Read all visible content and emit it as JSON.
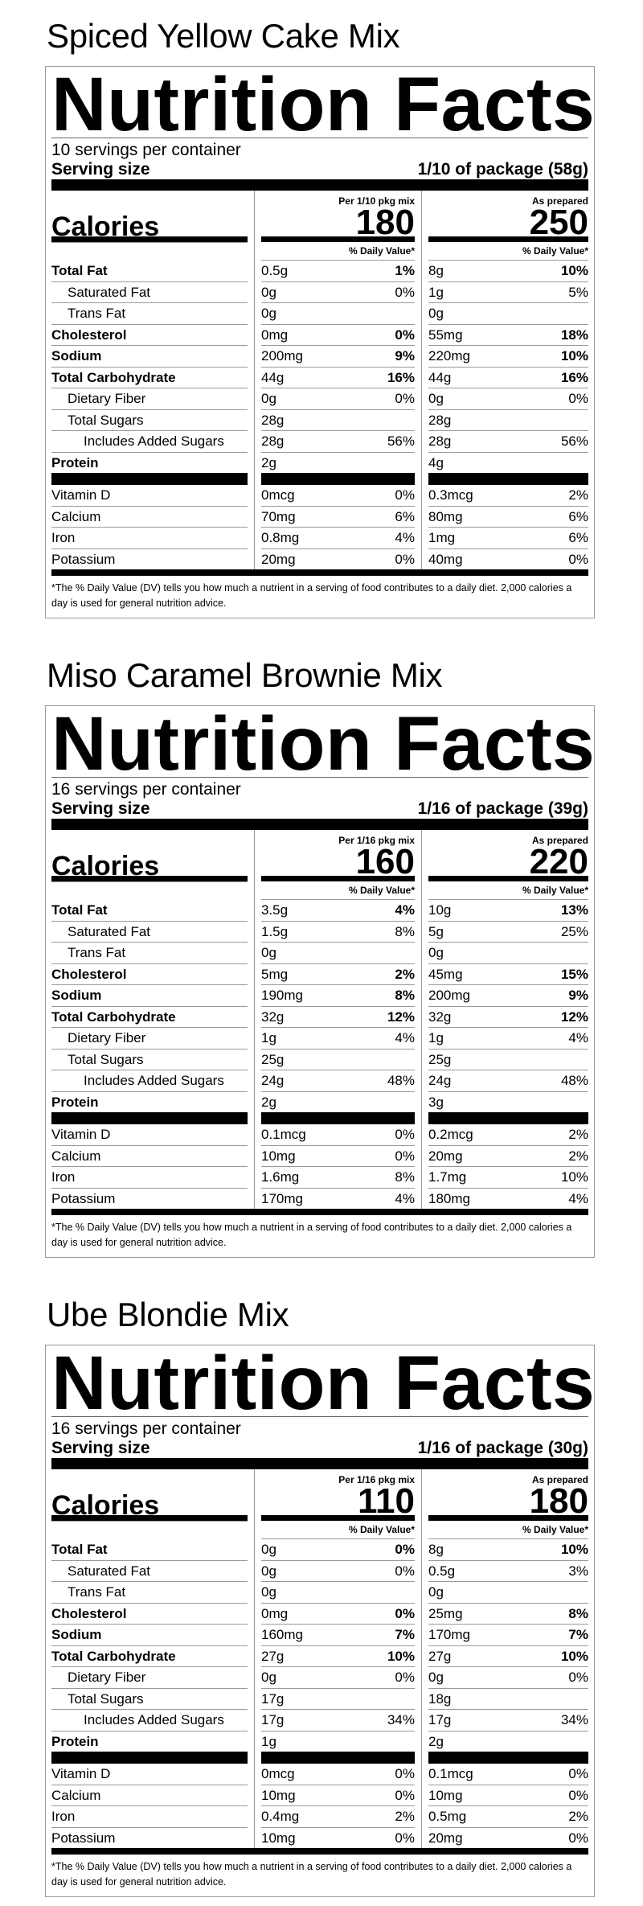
{
  "products": [
    {
      "title": "Spiced Yellow Cake Mix",
      "label": {
        "heading": "Nutrition Facts",
        "servings": "10 servings per container",
        "serving_size_label": "Serving size",
        "serving_size": "1/10 of package (58g)",
        "col1_header": "Per 1/10 pkg mix",
        "col2_header": "As prepared",
        "calories_label": "Calories",
        "calories": [
          180,
          250
        ],
        "dv_header": "% Daily Value*",
        "nutrients": [
          {
            "name": "Total Fat",
            "col1": {
              "amount": "0.5g",
              "dv": "1%"
            },
            "col2": {
              "amount": "8g",
              "dv": "10%"
            },
            "subs": [
              {
                "name": "Saturated Fat",
                "col1": {
                  "amount": "0g",
                  "dv": "0%"
                },
                "col2": {
                  "amount": "1g",
                  "dv": "5%"
                }
              },
              {
                "name": "Trans Fat",
                "col1": {
                  "amount": "0g"
                },
                "col2": {
                  "amount": "0g"
                }
              }
            ]
          },
          {
            "name": "Cholesterol",
            "col1": {
              "amount": "0mg",
              "dv": "0%"
            },
            "col2": {
              "amount": "55mg",
              "dv": "18%"
            }
          },
          {
            "name": "Sodium",
            "col1": {
              "amount": "200mg",
              "dv": "9%"
            },
            "col2": {
              "amount": "220mg",
              "dv": "10%"
            }
          },
          {
            "name": "Total Carbohydrate",
            "col1": {
              "amount": "44g",
              "dv": "16%"
            },
            "col2": {
              "amount": "44g",
              "dv": "16%"
            },
            "subs": [
              {
                "name": "Dietary Fiber",
                "col1": {
                  "amount": "0g",
                  "dv": "0%"
                },
                "col2": {
                  "amount": "0g",
                  "dv": "0%"
                }
              },
              {
                "name": "Total Sugars",
                "col1": {
                  "amount": "28g"
                },
                "col2": {
                  "amount": "28g"
                },
                "subs": [
                  {
                    "name": "Includes Added Sugars",
                    "col1": {
                      "amount": "28g",
                      "dv": "56%"
                    },
                    "col2": {
                      "amount": "28g",
                      "dv": "56%"
                    }
                  }
                ]
              }
            ]
          },
          {
            "name": "Protein",
            "col1": {
              "amount": "2g"
            },
            "col2": {
              "amount": "4g"
            }
          }
        ],
        "vitamins": [
          {
            "name": "Vitamin D",
            "col1": {
              "amount": "0mcg",
              "dv": "0%"
            },
            "col2": {
              "amount": "0.3mcg",
              "dv": "2%"
            }
          },
          {
            "name": "Calcium",
            "col1": {
              "amount": "70mg",
              "dv": "6%"
            },
            "col2": {
              "amount": "80mg",
              "dv": "6%"
            }
          },
          {
            "name": "Iron",
            "col1": {
              "amount": "0.8mg",
              "dv": "4%"
            },
            "col2": {
              "amount": "1mg",
              "dv": "6%"
            }
          },
          {
            "name": "Potassium",
            "col1": {
              "amount": "20mg",
              "dv": "0%"
            },
            "col2": {
              "amount": "40mg",
              "dv": "0%"
            }
          }
        ],
        "footnote": "*The % Daily Value (DV) tells you how much a nutrient in a serving of food contributes to a daily diet. 2,000 calories a day is used for general nutrition advice."
      }
    },
    {
      "title": "Miso Caramel Brownie Mix",
      "label": {
        "heading": "Nutrition Facts",
        "servings": "16 servings per container",
        "serving_size_label": "Serving size",
        "serving_size": "1/16 of package (39g)",
        "col1_header": "Per 1/16 pkg mix",
        "col2_header": "As prepared",
        "calories_label": "Calories",
        "calories": [
          160,
          220
        ],
        "dv_header": "% Daily Value*",
        "nutrients": [
          {
            "name": "Total Fat",
            "col1": {
              "amount": "3.5g",
              "dv": "4%"
            },
            "col2": {
              "amount": "10g",
              "dv": "13%"
            },
            "subs": [
              {
                "name": "Saturated Fat",
                "col1": {
                  "amount": "1.5g",
                  "dv": "8%"
                },
                "col2": {
                  "amount": "5g",
                  "dv": "25%"
                }
              },
              {
                "name": "Trans Fat",
                "col1": {
                  "amount": "0g"
                },
                "col2": {
                  "amount": "0g"
                }
              }
            ]
          },
          {
            "name": "Cholesterol",
            "col1": {
              "amount": "5mg",
              "dv": "2%"
            },
            "col2": {
              "amount": "45mg",
              "dv": "15%"
            }
          },
          {
            "name": "Sodium",
            "col1": {
              "amount": "190mg",
              "dv": "8%"
            },
            "col2": {
              "amount": "200mg",
              "dv": "9%"
            }
          },
          {
            "name": "Total Carbohydrate",
            "col1": {
              "amount": "32g",
              "dv": "12%"
            },
            "col2": {
              "amount": "32g",
              "dv": "12%"
            },
            "subs": [
              {
                "name": "Dietary Fiber",
                "col1": {
                  "amount": "1g",
                  "dv": "4%"
                },
                "col2": {
                  "amount": "1g",
                  "dv": "4%"
                }
              },
              {
                "name": "Total Sugars",
                "col1": {
                  "amount": "25g"
                },
                "col2": {
                  "amount": "25g"
                },
                "subs": [
                  {
                    "name": "Includes Added Sugars",
                    "col1": {
                      "amount": "24g",
                      "dv": "48%"
                    },
                    "col2": {
                      "amount": "24g",
                      "dv": "48%"
                    }
                  }
                ]
              }
            ]
          },
          {
            "name": "Protein",
            "col1": {
              "amount": "2g"
            },
            "col2": {
              "amount": "3g"
            }
          }
        ],
        "vitamins": [
          {
            "name": "Vitamin D",
            "col1": {
              "amount": "0.1mcg",
              "dv": "0%"
            },
            "col2": {
              "amount": "0.2mcg",
              "dv": "2%"
            }
          },
          {
            "name": "Calcium",
            "col1": {
              "amount": "10mg",
              "dv": "0%"
            },
            "col2": {
              "amount": "20mg",
              "dv": "2%"
            }
          },
          {
            "name": "Iron",
            "col1": {
              "amount": "1.6mg",
              "dv": "8%"
            },
            "col2": {
              "amount": "1.7mg",
              "dv": "10%"
            }
          },
          {
            "name": "Potassium",
            "col1": {
              "amount": "170mg",
              "dv": "4%"
            },
            "col2": {
              "amount": "180mg",
              "dv": "4%"
            }
          }
        ],
        "footnote": "*The % Daily Value (DV) tells you how much a nutrient in a serving of food contributes to a daily diet. 2,000 calories a day is used for general nutrition advice."
      }
    },
    {
      "title": "Ube Blondie Mix",
      "label": {
        "heading": "Nutrition Facts",
        "servings": "16 servings per container",
        "serving_size_label": "Serving size",
        "serving_size": "1/16 of package (30g)",
        "col1_header": "Per 1/16 pkg mix",
        "col2_header": "As prepared",
        "calories_label": "Calories",
        "calories": [
          110,
          180
        ],
        "dv_header": "% Daily Value*",
        "nutrients": [
          {
            "name": "Total Fat",
            "col1": {
              "amount": "0g",
              "dv": "0%"
            },
            "col2": {
              "amount": "8g",
              "dv": "10%"
            },
            "subs": [
              {
                "name": "Saturated Fat",
                "col1": {
                  "amount": "0g",
                  "dv": "0%"
                },
                "col2": {
                  "amount": "0.5g",
                  "dv": "3%"
                }
              },
              {
                "name": "Trans Fat",
                "col1": {
                  "amount": "0g"
                },
                "col2": {
                  "amount": "0g"
                }
              }
            ]
          },
          {
            "name": "Cholesterol",
            "col1": {
              "amount": "0mg",
              "dv": "0%"
            },
            "col2": {
              "amount": "25mg",
              "dv": "8%"
            }
          },
          {
            "name": "Sodium",
            "col1": {
              "amount": "160mg",
              "dv": "7%"
            },
            "col2": {
              "amount": "170mg",
              "dv": "7%"
            }
          },
          {
            "name": "Total Carbohydrate",
            "col1": {
              "amount": "27g",
              "dv": "10%"
            },
            "col2": {
              "amount": "27g",
              "dv": "10%"
            },
            "subs": [
              {
                "name": "Dietary Fiber",
                "col1": {
                  "amount": "0g",
                  "dv": "0%"
                },
                "col2": {
                  "amount": "0g",
                  "dv": "0%"
                }
              },
              {
                "name": "Total Sugars",
                "col1": {
                  "amount": "17g"
                },
                "col2": {
                  "amount": "18g"
                },
                "subs": [
                  {
                    "name": "Includes Added Sugars",
                    "col1": {
                      "amount": "17g",
                      "dv": "34%"
                    },
                    "col2": {
                      "amount": "17g",
                      "dv": "34%"
                    }
                  }
                ]
              }
            ]
          },
          {
            "name": "Protein",
            "col1": {
              "amount": "1g"
            },
            "col2": {
              "amount": "2g"
            }
          }
        ],
        "vitamins": [
          {
            "name": "Vitamin D",
            "col1": {
              "amount": "0mcg",
              "dv": "0%"
            },
            "col2": {
              "amount": "0.1mcg",
              "dv": "0%"
            }
          },
          {
            "name": "Calcium",
            "col1": {
              "amount": "10mg",
              "dv": "0%"
            },
            "col2": {
              "amount": "10mg",
              "dv": "0%"
            }
          },
          {
            "name": "Iron",
            "col1": {
              "amount": "0.4mg",
              "dv": "2%"
            },
            "col2": {
              "amount": "0.5mg",
              "dv": "2%"
            }
          },
          {
            "name": "Potassium",
            "col1": {
              "amount": "10mg",
              "dv": "0%"
            },
            "col2": {
              "amount": "20mg",
              "dv": "0%"
            }
          }
        ],
        "footnote": "*The % Daily Value (DV) tells you how much a nutrient in a serving of food contributes to a daily diet. 2,000 calories a day is used for general nutrition advice."
      }
    }
  ]
}
